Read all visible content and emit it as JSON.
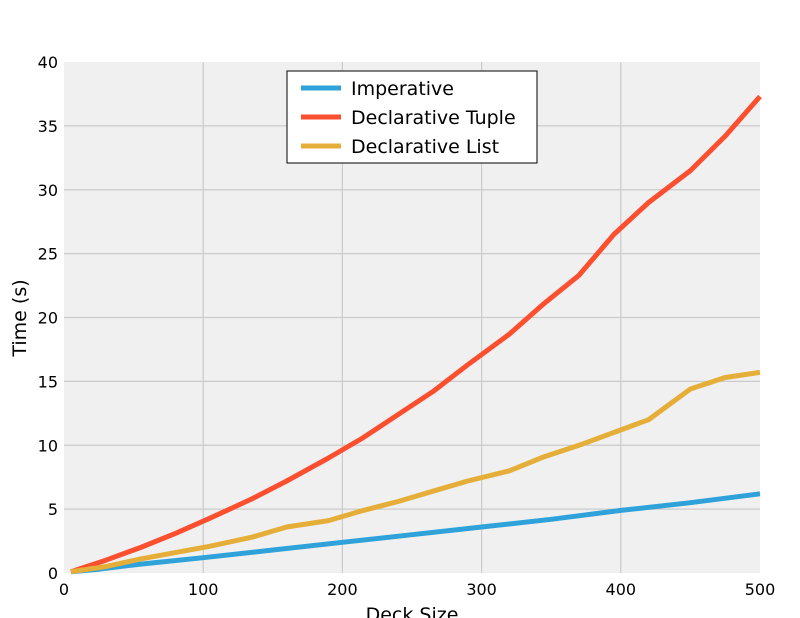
{
  "chart_data": {
    "type": "line",
    "title": "",
    "xlabel": "Deck Size",
    "ylabel": "Time (s)",
    "xlim": [
      0,
      500
    ],
    "ylim": [
      0,
      40
    ],
    "xticks": [
      0,
      100,
      200,
      300,
      400,
      500
    ],
    "yticks": [
      0,
      5,
      10,
      15,
      20,
      25,
      30,
      35,
      40
    ],
    "grid": true,
    "legend_position": "top-center",
    "series": [
      {
        "name": "Imperative",
        "color": "#30a2da",
        "x": [
          5,
          25,
          55,
          100,
          150,
          200,
          250,
          300,
          350,
          400,
          450,
          500
        ],
        "y": [
          0.1,
          0.3,
          0.7,
          1.2,
          1.8,
          2.4,
          3.0,
          3.6,
          4.2,
          4.9,
          5.5,
          6.2
        ]
      },
      {
        "name": "Declarative Tuple",
        "color": "#fc4f30",
        "x": [
          5,
          30,
          55,
          80,
          105,
          135,
          160,
          190,
          215,
          240,
          265,
          290,
          320,
          345,
          370,
          395,
          420,
          450,
          475,
          500
        ],
        "y": [
          0.1,
          1.0,
          2.0,
          3.1,
          4.3,
          5.8,
          7.2,
          9.0,
          10.6,
          12.4,
          14.2,
          16.3,
          18.7,
          21.1,
          23.3,
          26.5,
          29.0,
          31.5,
          34.2,
          37.3
        ]
      },
      {
        "name": "Declarative List",
        "color": "#e5ae38",
        "x": [
          5,
          30,
          55,
          80,
          105,
          135,
          160,
          190,
          215,
          240,
          265,
          290,
          320,
          345,
          370,
          395,
          420,
          450,
          475,
          500
        ],
        "y": [
          0.1,
          0.5,
          1.1,
          1.6,
          2.1,
          2.8,
          3.6,
          4.1,
          4.9,
          5.6,
          6.4,
          7.2,
          8.0,
          9.1,
          10.0,
          11.0,
          12.0,
          14.4,
          15.3,
          15.7
        ]
      }
    ]
  }
}
